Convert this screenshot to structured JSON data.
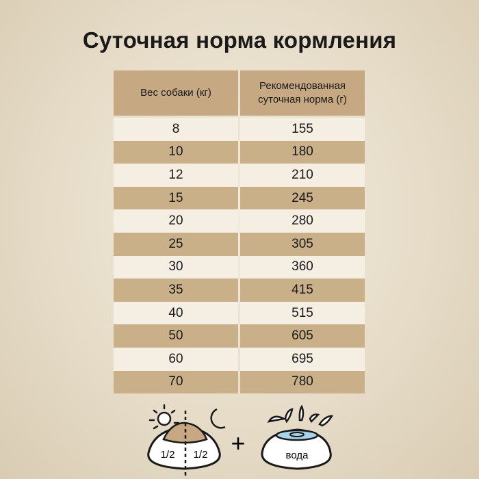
{
  "title": "Суточная норма кормления",
  "table": {
    "headers": [
      "Вес собаки (кг)",
      "Рекомендованная суточная норма (г)"
    ],
    "rows": [
      [
        "8",
        "155"
      ],
      [
        "10",
        "180"
      ],
      [
        "12",
        "210"
      ],
      [
        "15",
        "245"
      ],
      [
        "20",
        "280"
      ],
      [
        "25",
        "305"
      ],
      [
        "30",
        "360"
      ],
      [
        "35",
        "415"
      ],
      [
        "40",
        "515"
      ],
      [
        "50",
        "605"
      ],
      [
        "60",
        "695"
      ],
      [
        "70",
        "780"
      ]
    ]
  },
  "footer": {
    "half_left": "1/2",
    "half_right": "1/2",
    "plus": "+",
    "water_label": "вода"
  },
  "colors": {
    "header": "#c6a982",
    "row_light": "#f4eee3",
    "row_dark": "#c9b089",
    "food": "#c8a882",
    "water": "#a9d3e8"
  }
}
